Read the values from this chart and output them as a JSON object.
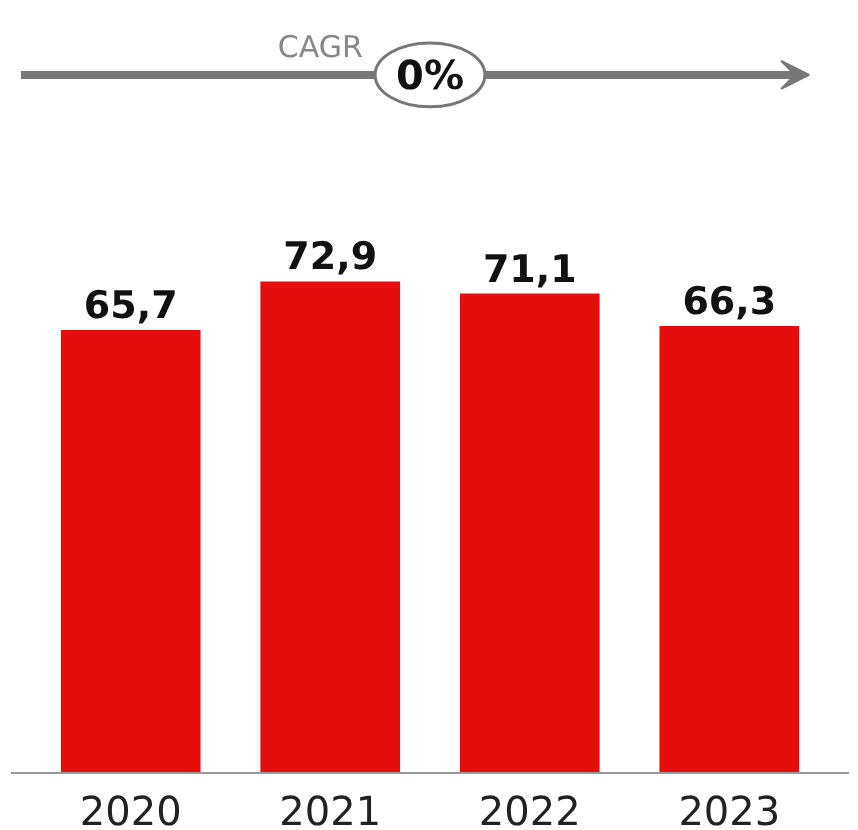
{
  "chart_data": {
    "type": "bar",
    "categories": [
      "2020",
      "2021",
      "2022",
      "2023"
    ],
    "values": [
      65.7,
      72.9,
      71.1,
      66.3
    ],
    "value_labels": [
      "65,7",
      "72,9",
      "71,1",
      "66,3"
    ],
    "color": "#e60d0d",
    "annotations": [
      "CAGR",
      "0%"
    ],
    "grid": false
  }
}
